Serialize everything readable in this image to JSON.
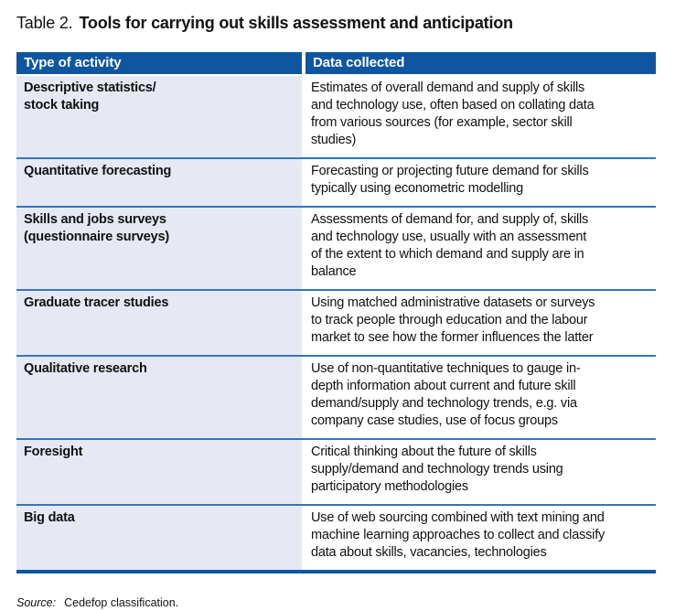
{
  "title": {
    "prefix": "Table 2.",
    "text": "Tools for carrying out skills assessment and anticipation"
  },
  "table": {
    "headers": [
      "Type of activity",
      "Data collected"
    ],
    "rows": [
      {
        "activity": "Descriptive statistics/\nstock taking",
        "data": "Estimates of overall demand and supply of skills\nand technology use, often based on collating data\nfrom various sources (for example, sector skill\nstudies)"
      },
      {
        "activity": "Quantitative forecasting",
        "data": "Forecasting or projecting future demand for skills\ntypically using econometric modelling"
      },
      {
        "activity": "Skills and jobs surveys\n(questionnaire surveys)",
        "data": "Assessments of demand for, and supply of, skills\nand technology use, usually with an assessment\nof the extent to which demand and supply are in\nbalance"
      },
      {
        "activity": "Graduate tracer studies",
        "data": "Using matched administrative datasets or surveys\nto track people through education and the labour\nmarket to see how the former influences the latter"
      },
      {
        "activity": "Qualitative research",
        "data": "Use of non-quantitative techniques to gauge in-\ndepth information about current and future skill\ndemand/supply and technology trends, e.g. via\ncompany case studies, use of focus groups"
      },
      {
        "activity": "Foresight",
        "data": "Critical thinking about the future of skills\nsupply/demand and technology trends using\nparticipatory methodologies"
      },
      {
        "activity": "Big data",
        "data": "Use of web sourcing combined with text mining and\nmachine learning approaches to collect and classify\ndata about skills, vacancies, technologies"
      }
    ]
  },
  "source": {
    "label": "Source:",
    "text": "Cedefop classification."
  },
  "colors": {
    "header_bg": "#0e56a0",
    "header_text": "#ffffff",
    "activity_column_bg": "#e6e8f4",
    "row_divider": "#3276bb",
    "table_bottom_border": "#0e56a0",
    "body_text": "#111111",
    "page_bg": "#ffffff"
  }
}
